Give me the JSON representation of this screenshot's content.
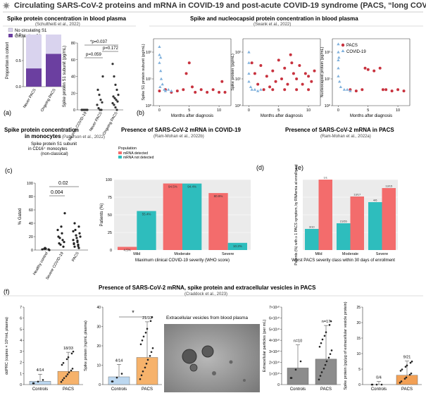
{
  "header": {
    "title": "Circulating SARS-CoV-2 proteins and mRNA in COVID-19 and post-acute COVID-19 syndrome (PACS, “long COVID”)",
    "icon": "virus-icon"
  },
  "colors": {
    "purple": "#6b3fa0",
    "lavender": "#d9d3ee",
    "pacs_red": "#c8323e",
    "covid_blue": "#7fb0dc",
    "salmon": "#f36c6c",
    "teal": "#2ebdbd",
    "blue_bar": "#bcd7ef",
    "orange_bar": "#f6b26b",
    "gray_bar": "#8c8c8c",
    "orange_bar2": "#f2a055"
  },
  "panels": {
    "a": {
      "letter": "(a)",
      "title": "Spike protein concentration in blood plasma",
      "citation": "(Schultheiß et al., 2022)",
      "legend": [
        "No circulating S1",
        "Circulating S1"
      ],
      "pvals": [
        "*p=0.037",
        "p=0.172",
        "p=0.059"
      ]
    },
    "b": {
      "letter": "(b)",
      "title": "Spike and nucleocapsid protein concentration in blood plasma",
      "citation": "(Swank et al., 2022)",
      "legend": [
        "PACS",
        "COVID-19"
      ],
      "x_tick_labels": [
        "0",
        "5",
        "10"
      ]
    },
    "c": {
      "letter": "(c)",
      "title_line1": "Spike protein concentration",
      "title_line2": "in monocytes",
      "citation": "(Patterson et al., 2022)",
      "subtitle_line1": "Spike protein S1 subunit",
      "subtitle_line2": "in CD16⁺ monocytes",
      "subtitle_line3": "(non-classical)",
      "pvals": [
        "0.02",
        "0.004"
      ]
    },
    "d": {
      "letter": "(d)",
      "title": "Presence of SARS-CoV-2 mRNA in COVID-19",
      "citation": "(Ram-Mohan et al., 2022b)",
      "legend_title": "Population"
    },
    "e": {
      "letter": "(e)",
      "title": "Presence of SARS-CoV-2 mRNA in PACS",
      "citation": "(Ram-Mohan et al., 2022a)"
    },
    "f": {
      "letter": "(f)",
      "title": "Presence of SARS-CoV-2 mRNA, spike protein and extracellular vesicles in PACS",
      "citation": "(Craddock et al., 2023)",
      "ev_title": "Extracellular vesicles from blood plasma",
      "star": "*"
    }
  },
  "chart_data": [
    {
      "id": "a-bars",
      "type": "bar",
      "stacked": true,
      "categories": [
        "Never PACS",
        "Ongoing PACS"
      ],
      "series": [
        {
          "name": "Circulating S1",
          "values": [
            0.35,
            0.63
          ]
        },
        {
          "name": "No circulating S1",
          "values": [
            0.65,
            0.37
          ]
        }
      ],
      "ylabel": "Proportion in cohort",
      "ylim": [
        0,
        1
      ],
      "yticks": [
        "0.0",
        "0.5",
        "1.0"
      ]
    },
    {
      "id": "a-scatter",
      "type": "scatter",
      "categories": [
        "No prior COVID-19",
        "Never PACS",
        "Ongoing PACS"
      ],
      "ylabel": "Spike protein S1 subunit (pg/mL)",
      "ylim": [
        0,
        80
      ],
      "yticks": [
        "0",
        "20",
        "40",
        "60",
        "80"
      ],
      "points": [
        [
          0,
          0
        ],
        [
          0,
          0
        ],
        [
          0,
          0
        ],
        [
          0,
          0
        ],
        [
          0,
          0
        ],
        [
          0,
          0
        ],
        [
          1,
          0
        ],
        [
          1,
          0
        ],
        [
          1,
          2
        ],
        [
          1,
          6
        ],
        [
          1,
          9
        ],
        [
          1,
          12
        ],
        [
          1,
          18
        ],
        [
          1,
          24
        ],
        [
          1,
          40
        ],
        [
          2,
          0
        ],
        [
          2,
          3
        ],
        [
          2,
          6
        ],
        [
          2,
          8
        ],
        [
          2,
          10
        ],
        [
          2,
          12
        ],
        [
          2,
          14
        ],
        [
          2,
          16
        ],
        [
          2,
          18
        ],
        [
          2,
          24
        ],
        [
          2,
          30
        ],
        [
          2,
          40
        ],
        [
          2,
          55
        ]
      ]
    },
    {
      "id": "b1",
      "type": "scatter",
      "xlabel": "Months after diagnosis",
      "ylabel": "Spike S1 protein subunit (pg/mL)",
      "log_y": true,
      "ytick_labels": [
        "10⁰",
        "10¹",
        "10²"
      ],
      "xlim": [
        -1,
        12
      ],
      "ylim_log": [
        0,
        2.5
      ],
      "series": [
        {
          "name": "PACS",
          "points": [
            [
              0,
              0.55
            ],
            [
              1,
              0.6
            ],
            [
              2,
              0.5
            ],
            [
              3,
              0.55
            ],
            [
              4,
              0.6
            ],
            [
              4.5,
              1.2
            ],
            [
              5,
              1.6
            ],
            [
              5.5,
              0.7
            ],
            [
              6,
              0.5
            ],
            [
              7,
              0.6
            ],
            [
              8,
              0.5
            ],
            [
              9,
              0.6
            ],
            [
              10,
              0.5
            ],
            [
              11,
              0.5
            ],
            [
              10.5,
              0.9
            ]
          ]
        },
        {
          "name": "COVID-19",
          "points": [
            [
              0,
              2.2
            ],
            [
              0,
              1.9
            ],
            [
              0,
              1.6
            ],
            [
              0.2,
              1.3
            ],
            [
              0.3,
              1.0
            ],
            [
              0.5,
              0.8
            ],
            [
              0.1,
              0.7
            ],
            [
              0.8,
              0.6
            ],
            [
              1,
              0.55
            ],
            [
              1.5,
              0.6
            ],
            [
              2,
              0.55
            ],
            [
              0.2,
              1.8
            ]
          ]
        }
      ]
    },
    {
      "id": "b2",
      "type": "scatter",
      "xlabel": "Months after diagnosis",
      "ylabel": "Spike protein (pg/mL)",
      "log_y": true,
      "ytick_labels": [
        "10⁰",
        "10¹",
        "10²"
      ],
      "xlim": [
        -1,
        12
      ],
      "ylim_log": [
        0,
        2.5
      ],
      "series": [
        {
          "name": "PACS",
          "points": [
            [
              0.5,
              1.6
            ],
            [
              1,
              1.2
            ],
            [
              1.5,
              0.8
            ],
            [
              2,
              1.5
            ],
            [
              2.5,
              0.6
            ],
            [
              3,
              1.1
            ],
            [
              3.5,
              0.7
            ],
            [
              4,
              1.3
            ],
            [
              4.5,
              0.9
            ],
            [
              5,
              1.7
            ],
            [
              5.5,
              1.0
            ],
            [
              6,
              1.4
            ],
            [
              6.5,
              0.8
            ],
            [
              7,
              1.9
            ],
            [
              7.5,
              1.2
            ],
            [
              8,
              1.0
            ],
            [
              8.5,
              1.5
            ],
            [
              9,
              0.8
            ],
            [
              9.5,
              1.2
            ],
            [
              10,
              1.1
            ],
            [
              10.5,
              0.9
            ],
            [
              11,
              1.3
            ],
            [
              4,
              0.6
            ],
            [
              6,
              0.6
            ],
            [
              8,
              0.6
            ],
            [
              10,
              0.6
            ],
            [
              7.2,
              1.6
            ]
          ]
        },
        {
          "name": "COVID-19",
          "points": [
            [
              0,
              2.0
            ],
            [
              0,
              1.6
            ],
            [
              0,
              1.2
            ],
            [
              0,
              0.9
            ],
            [
              0.3,
              0.7
            ],
            [
              0.5,
              0.6
            ],
            [
              1,
              0.6
            ],
            [
              1.5,
              0.55
            ],
            [
              2,
              0.6
            ]
          ]
        }
      ]
    },
    {
      "id": "b3",
      "type": "scatter",
      "xlabel": "Months after diagnosis",
      "ylabel": "Nucleocapsid protein (pg/mL)",
      "log_y": true,
      "ytick_labels": [
        "10⁰",
        "10¹",
        "10²"
      ],
      "xlim": [
        -1,
        12
      ],
      "ylim_log": [
        0,
        2.5
      ],
      "series": [
        {
          "name": "PACS",
          "points": [
            [
              2,
              0.6
            ],
            [
              3,
              0.55
            ],
            [
              4,
              0.6
            ],
            [
              4.5,
              1.4
            ],
            [
              5,
              1.35
            ],
            [
              6,
              1.3
            ],
            [
              7,
              1.4
            ],
            [
              7.5,
              0.6
            ],
            [
              8,
              0.6
            ],
            [
              9,
              0.55
            ],
            [
              10,
              0.6
            ],
            [
              11,
              0.55
            ]
          ]
        },
        {
          "name": "COVID-19",
          "points": [
            [
              0,
              2.3
            ],
            [
              0,
              2.0
            ],
            [
              0,
              1.7
            ],
            [
              0,
              1.4
            ],
            [
              0,
              1.1
            ],
            [
              0.2,
              0.9
            ],
            [
              0.4,
              0.7
            ],
            [
              1,
              0.6
            ],
            [
              1.5,
              0.6
            ],
            [
              2,
              0.55
            ],
            [
              0.1,
              1.8
            ]
          ]
        }
      ]
    },
    {
      "id": "c",
      "type": "scatter",
      "categories": [
        "Healthy control",
        "Severe COVID-19",
        "PACS"
      ],
      "ylabel": "% Gated",
      "ylim": [
        0,
        100
      ],
      "yticks": [
        "0",
        "20",
        "40",
        "60",
        "80",
        "100"
      ],
      "points": [
        [
          0,
          1
        ],
        [
          0,
          2
        ],
        [
          0,
          0
        ],
        [
          0,
          3
        ],
        [
          0,
          1
        ],
        [
          0,
          2
        ],
        [
          1,
          5
        ],
        [
          1,
          10
        ],
        [
          1,
          15
        ],
        [
          1,
          20
        ],
        [
          1,
          25
        ],
        [
          1,
          30
        ],
        [
          1,
          35
        ],
        [
          1,
          55
        ],
        [
          1,
          8
        ],
        [
          1,
          12
        ],
        [
          1,
          18
        ],
        [
          2,
          3
        ],
        [
          2,
          5
        ],
        [
          2,
          8
        ],
        [
          2,
          10
        ],
        [
          2,
          12
        ],
        [
          2,
          15
        ],
        [
          2,
          18
        ],
        [
          2,
          20
        ],
        [
          2,
          22
        ],
        [
          2,
          25
        ],
        [
          2,
          30
        ],
        [
          2,
          35
        ],
        [
          2,
          40
        ],
        [
          2,
          6
        ],
        [
          2,
          9
        ],
        [
          2,
          14
        ],
        [
          2,
          28
        ]
      ]
    },
    {
      "id": "d",
      "type": "bar",
      "categories": [
        "Mild",
        "Moderate",
        "Severe"
      ],
      "xlabel": "Maximum clinical COVID-19 severity (WHO score)",
      "ylabel": "Patients (%)",
      "ylim": [
        0,
        100
      ],
      "yticks": [
        "0",
        "25",
        "50",
        "75",
        "100"
      ],
      "series": [
        {
          "name": "mRNA detected",
          "values": [
            4.5,
            94.5,
            80.9
          ]
        },
        {
          "name": "mRNA not detected",
          "values": [
            55.4,
            94.4,
            10.2
          ]
        }
      ],
      "data_labels": [
        [
          "4.5%",
          "94.5%",
          "80.9%"
        ],
        [
          "55.4%",
          "94.4%",
          "10.2%"
        ]
      ]
    },
    {
      "id": "e",
      "type": "bar",
      "categories": [
        "Mild",
        "Moderate",
        "Severe"
      ],
      "xlabel": "Worst PACS severity class within 30 days of enrollment",
      "ylabel": "Patients (%) with ≥ 1 PACS symptom, by RNAemia at enrollment",
      "ylim": [
        0,
        100
      ],
      "yticks": [
        "0",
        "25",
        "50",
        "75",
        "100"
      ],
      "series": [
        {
          "name": "Teal",
          "values": [
            30,
            38,
            68
          ]
        },
        {
          "name": "Red",
          "values": [
            100,
            76,
            88
          ]
        }
      ],
      "data_labels": [
        [
          "3/10",
          "21/55",
          "4/6"
        ],
        [
          "1/1",
          "13/17",
          "13/15"
        ]
      ]
    },
    {
      "id": "f1",
      "type": "bar",
      "categories": [
        "Controls",
        "PACS"
      ],
      "ylabel": "ddPRC (copies × 10⁵/mL plasma)",
      "ylim": [
        0,
        7
      ],
      "yticks": [
        "0",
        "1",
        "2",
        "3",
        "4",
        "5",
        "6",
        "7"
      ],
      "values": [
        0.3,
        1.2
      ],
      "fractions": [
        "4/14",
        "18/33"
      ]
    },
    {
      "id": "f2",
      "type": "bar",
      "categories": [
        "Controls",
        "PACS"
      ],
      "ylabel": "Spike protein (ng/mL plasma)",
      "ylim": [
        0,
        40
      ],
      "yticks": [
        "0",
        "10",
        "20",
        "30",
        "40"
      ],
      "values": [
        4,
        14
      ],
      "fractions": [
        "4/14",
        "21/33"
      ]
    },
    {
      "id": "f3",
      "type": "bar",
      "categories": [
        "Controls",
        "PACS"
      ],
      "ylabel": "Extracellular particles (per mL)",
      "yticks": [
        "0",
        "1×10¹⁰",
        "2×10¹⁰",
        "3×10¹⁰",
        "4×10¹⁰",
        "5×10¹⁰",
        "6×10¹⁰",
        "7×10¹⁰"
      ],
      "ylim": [
        0,
        7
      ],
      "values": [
        1.5,
        2.3
      ],
      "annotations": [
        "n=10",
        "n=17"
      ]
    },
    {
      "id": "f4",
      "type": "bar",
      "categories": [
        "Controls",
        "PACS"
      ],
      "ylabel": "Spike protein (pg/μg of extracellular vesicle protein)",
      "ylim": [
        0,
        25
      ],
      "yticks": [
        "0",
        "5",
        "10",
        "15",
        "20",
        "25"
      ],
      "values": [
        0,
        3
      ],
      "fractions": [
        "0/4",
        "9/21"
      ]
    }
  ]
}
